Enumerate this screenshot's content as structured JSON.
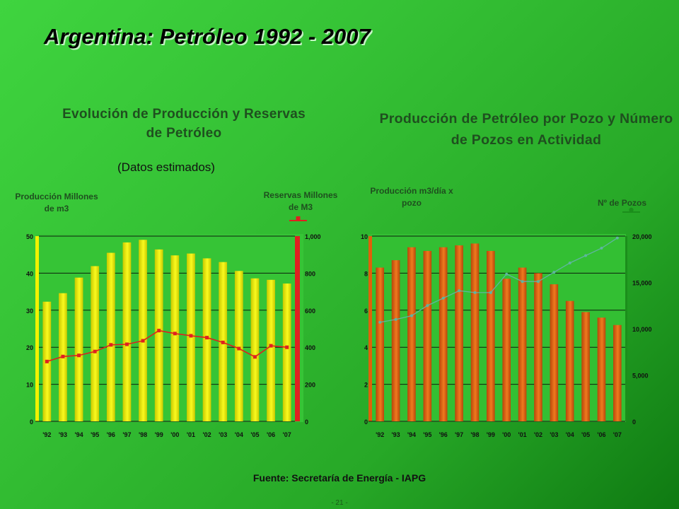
{
  "title": "Argentina: Petróleo 1992 - 2007",
  "source": "Fuente: Secretaría de Energía - IAPG",
  "page_number": "- 21 -",
  "colors": {
    "yellow_bar": "#f2f200",
    "orange_bar": "#e0600a",
    "red_line": "#e02020",
    "teal_line": "#5fb5a0",
    "green_axis": "#1b8e1b"
  },
  "chart_data": [
    {
      "type": "bar",
      "title": "Evolución de Producción y Reservas de Petróleo",
      "note": "(Datos estimados)",
      "categories": [
        "'92",
        "'93",
        "'94",
        "'95",
        "'96",
        "'97",
        "'98",
        "'99",
        "'00",
        "'01",
        "'02",
        "'03",
        "'04",
        "'05",
        "'06",
        "'07"
      ],
      "ylabel_left": "Producción Millones de m3",
      "ylabel_right": "Reservas Millones de M3",
      "ylim_left": [
        0,
        50
      ],
      "yticks_left": [
        "0",
        "10",
        "20",
        "30",
        "40",
        "50"
      ],
      "ylim_right": [
        0,
        1000
      ],
      "yticks_right": [
        "0",
        "200",
        "400",
        "600",
        "800",
        "1,000"
      ],
      "series": [
        {
          "name": "Producción",
          "type": "bar",
          "axis": "left",
          "values": [
            32.3,
            34.6,
            38.8,
            41.9,
            45.5,
            48.3,
            49.0,
            46.4,
            44.8,
            45.3,
            44.0,
            43.0,
            40.6,
            38.6,
            38.2,
            37.2
          ]
        },
        {
          "name": "Reservas",
          "type": "line",
          "axis": "right",
          "values": [
            323,
            350,
            356,
            377,
            413,
            416,
            435,
            490,
            474,
            462,
            452,
            426,
            393,
            348,
            408,
            400
          ]
        }
      ],
      "grid": true
    },
    {
      "type": "bar",
      "title": "Producción de Petróleo por Pozo y Número de Pozos en Actividad",
      "categories": [
        "'92",
        "'93",
        "'94",
        "'95",
        "'96",
        "'97",
        "'98",
        "'99",
        "'00",
        "'01",
        "'02",
        "'03",
        "'04",
        "'05",
        "'06",
        "'07"
      ],
      "ylabel_left": "Producción m3/día x pozo",
      "ylabel_right": "Nº de Pozos",
      "ylim_left": [
        0,
        10
      ],
      "yticks_left": [
        "0",
        "2",
        "4",
        "6",
        "8",
        "10"
      ],
      "ylim_right": [
        0,
        20000
      ],
      "yticks_right": [
        "0",
        "5,000",
        "10,000",
        "15,000",
        "20,000"
      ],
      "series": [
        {
          "name": "Producción",
          "type": "bar",
          "axis": "left",
          "values": [
            8.3,
            8.7,
            9.4,
            9.2,
            9.4,
            9.5,
            9.6,
            9.2,
            7.7,
            8.3,
            8.0,
            7.4,
            6.5,
            5.9,
            5.6,
            5.2
          ]
        },
        {
          "name": "Nº de Pozos",
          "type": "line",
          "axis": "right",
          "values": [
            10700,
            11000,
            11400,
            12500,
            13300,
            14100,
            13900,
            13900,
            15900,
            15100,
            15100,
            16100,
            17100,
            17900,
            18700,
            19800
          ]
        }
      ],
      "grid": true
    }
  ]
}
